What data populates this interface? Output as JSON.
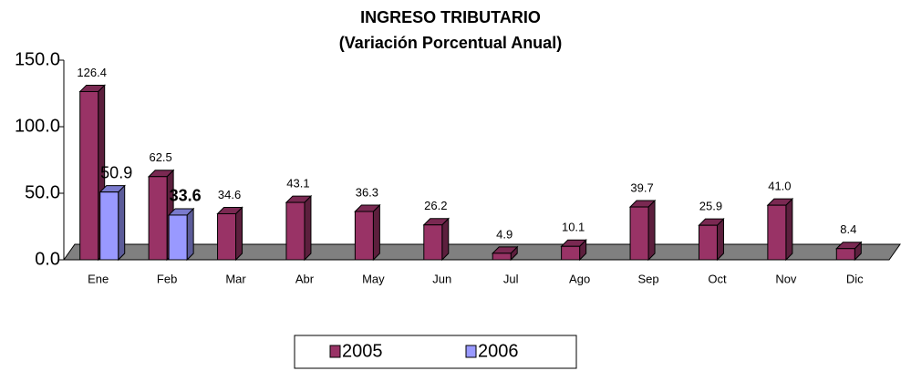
{
  "chart_data": {
    "type": "bar3d",
    "title": "INGRESO TRIBUTARIO",
    "subtitle": "(Variación Porcentual Anual)",
    "categories": [
      "Ene",
      "Feb",
      "Mar",
      "Abr",
      "May",
      "Jun",
      "Jul",
      "Ago",
      "Sep",
      "Oct",
      "Nov",
      "Dic"
    ],
    "series": [
      {
        "name": "2005",
        "color": "#993366",
        "values": [
          126.4,
          62.5,
          34.6,
          43.1,
          36.3,
          26.2,
          4.9,
          10.1,
          39.7,
          25.9,
          41.0,
          8.4
        ],
        "value_labels": [
          "126.4",
          "62.5",
          "34.6",
          "43.1",
          "36.3",
          "26.2",
          "4.9",
          "10.1",
          "39.7",
          "25.9",
          "41.0",
          "8.4"
        ]
      },
      {
        "name": "2006",
        "color": "#9999ff",
        "values": [
          50.9,
          33.6,
          null,
          null,
          null,
          null,
          null,
          null,
          null,
          null,
          null,
          null
        ],
        "value_labels": [
          "50.9",
          "33.6",
          null,
          null,
          null,
          null,
          null,
          null,
          null,
          null,
          null,
          null
        ]
      }
    ],
    "ylim": [
      0,
      150
    ],
    "yticks": [
      {
        "value": 0,
        "label": "0.0"
      },
      {
        "value": 50,
        "label": "50.0"
      },
      {
        "value": 100,
        "label": "100.0"
      },
      {
        "value": 150,
        "label": "150.0"
      }
    ],
    "floor_color": "#808080",
    "legend": "bottom"
  }
}
